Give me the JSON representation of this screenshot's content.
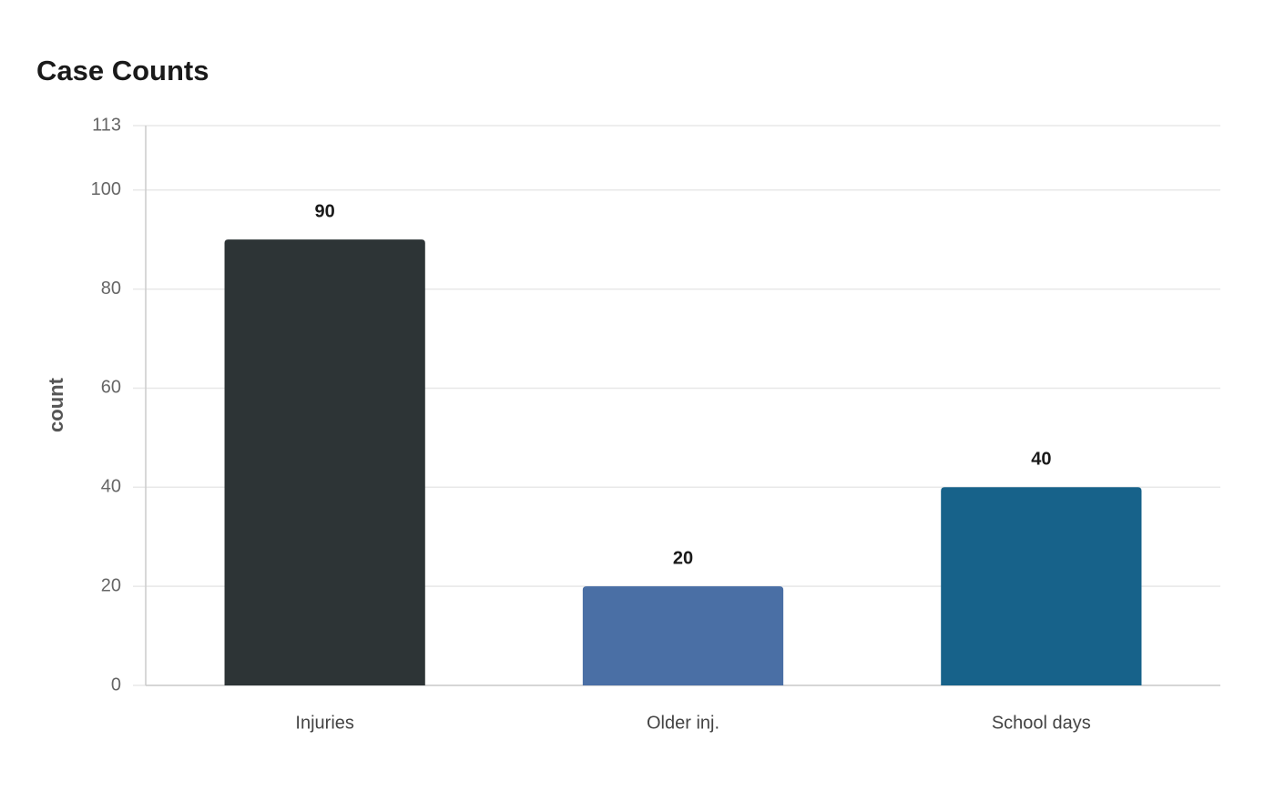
{
  "chart_data": {
    "type": "bar",
    "title": "Case Counts",
    "y_label": "count",
    "categories": [
      "Injuries",
      "Older inj.",
      "School days"
    ],
    "values": [
      90,
      20,
      40
    ],
    "colors": [
      "#2d3436",
      "#4a6fa5",
      "#17628a"
    ],
    "ylim": [
      0,
      113
    ],
    "yticks": [
      0,
      20,
      40,
      60,
      80,
      100,
      113
    ],
    "grid": true
  }
}
